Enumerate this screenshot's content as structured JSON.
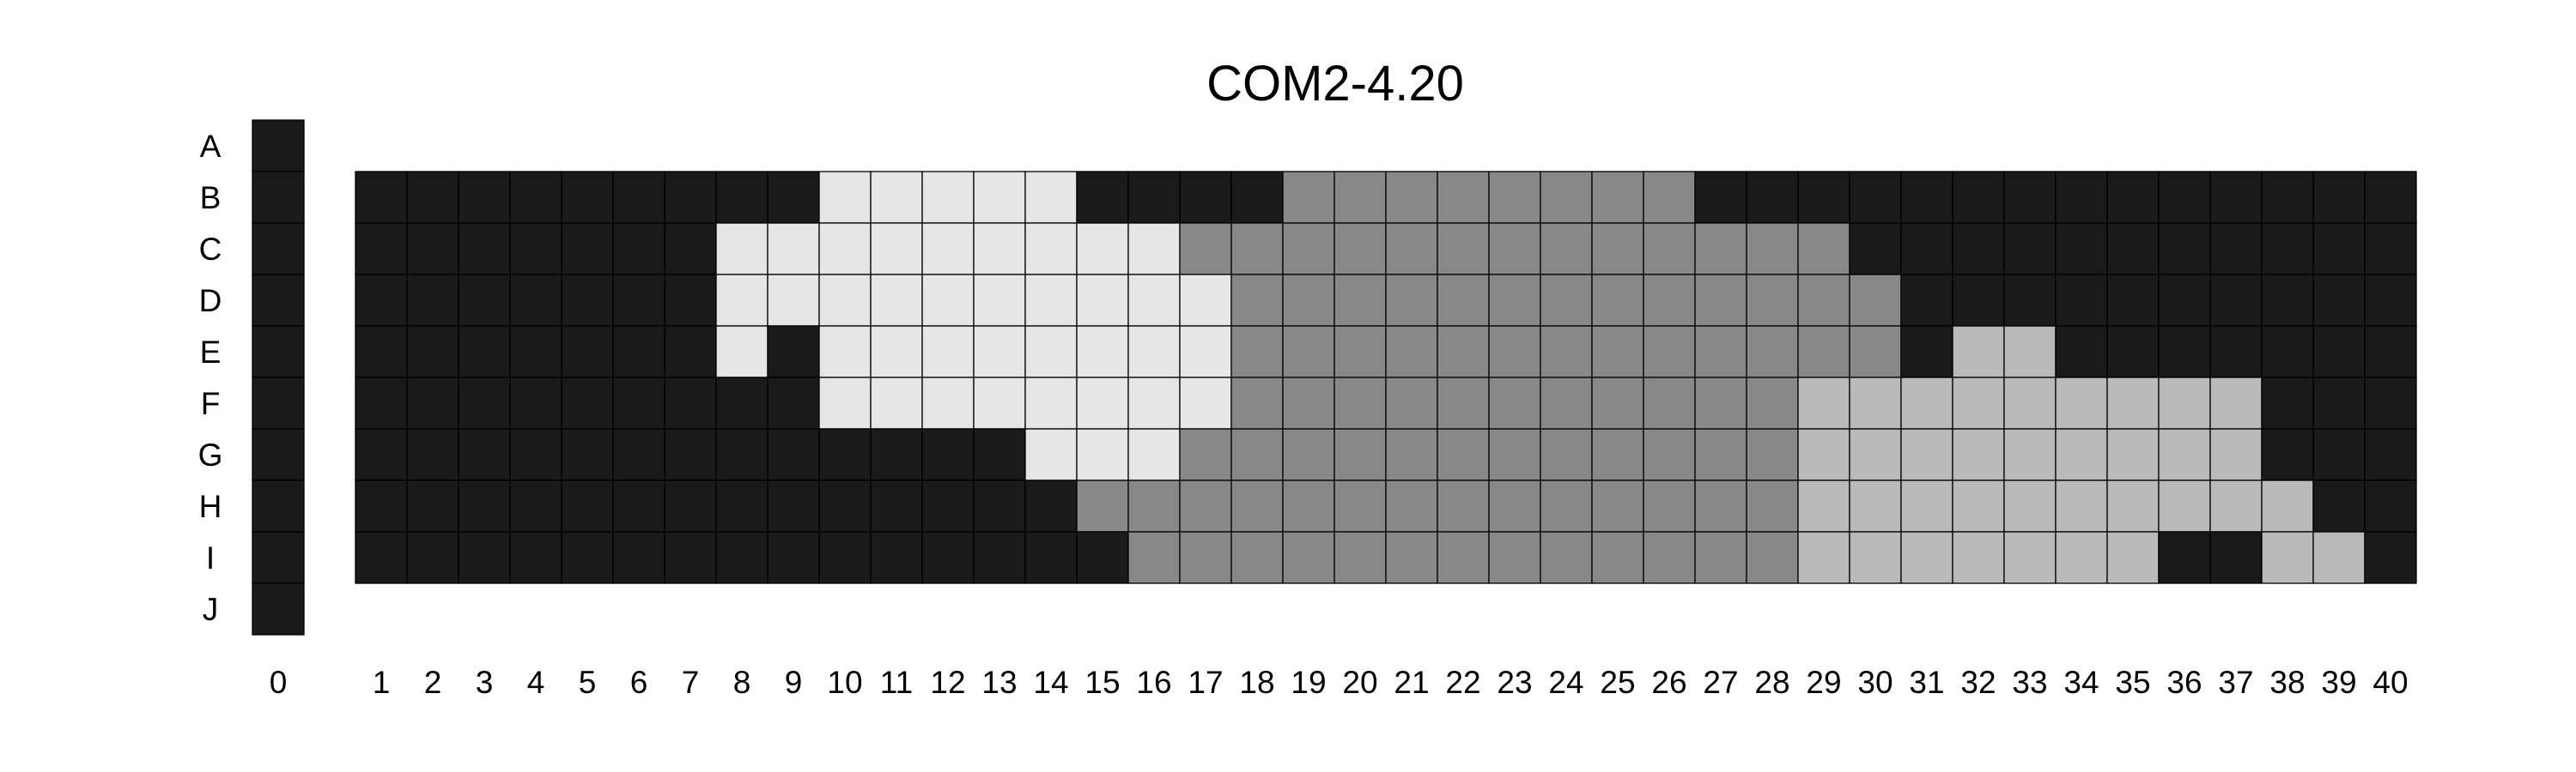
{
  "chart_data": {
    "type": "heatmap",
    "title": "COM2-4.20",
    "rows": [
      "A",
      "B",
      "C",
      "D",
      "E",
      "F",
      "G",
      "H",
      "I",
      "J"
    ],
    "columns": [
      "0",
      "1",
      "2",
      "3",
      "4",
      "5",
      "6",
      "7",
      "8",
      "9",
      "10",
      "11",
      "12",
      "13",
      "14",
      "15",
      "16",
      "17",
      "18",
      "19",
      "20",
      "21",
      "22",
      "23",
      "24",
      "25",
      "26",
      "27",
      "28",
      "29",
      "30",
      "31",
      "32",
      "33",
      "34",
      "35",
      "36",
      "37",
      "38",
      "39",
      "40"
    ],
    "levels": {
      "0": "#1a1a1a",
      "1": "#888888",
      "2": "#bababa",
      "3": "#e6e6e6"
    },
    "column_0_rows": [
      "A",
      "B",
      "C",
      "D",
      "E",
      "F",
      "G",
      "H",
      "I",
      "J"
    ],
    "column_0_level": 0,
    "grid_rows": [
      "B",
      "C",
      "D",
      "E",
      "F",
      "G",
      "H",
      "I"
    ],
    "grid_columns": [
      "1",
      "2",
      "3",
      "4",
      "5",
      "6",
      "7",
      "8",
      "9",
      "10",
      "11",
      "12",
      "13",
      "14",
      "15",
      "16",
      "17",
      "18",
      "19",
      "20",
      "21",
      "22",
      "23",
      "24",
      "25",
      "26",
      "27",
      "28",
      "29",
      "30",
      "31",
      "32",
      "33",
      "34",
      "35",
      "36",
      "37",
      "38",
      "39",
      "40"
    ],
    "values": [
      [
        0,
        0,
        0,
        0,
        0,
        0,
        0,
        0,
        0,
        3,
        3,
        3,
        3,
        3,
        0,
        0,
        0,
        0,
        1,
        1,
        1,
        1,
        1,
        1,
        1,
        1,
        0,
        0,
        0,
        0,
        0,
        0,
        0,
        0,
        0,
        0,
        0,
        0,
        0,
        0
      ],
      [
        0,
        0,
        0,
        0,
        0,
        0,
        0,
        3,
        3,
        3,
        3,
        3,
        3,
        3,
        3,
        3,
        1,
        1,
        1,
        1,
        1,
        1,
        1,
        1,
        1,
        1,
        1,
        1,
        1,
        0,
        0,
        0,
        0,
        0,
        0,
        0,
        0,
        0,
        0,
        0
      ],
      [
        0,
        0,
        0,
        0,
        0,
        0,
        0,
        3,
        3,
        3,
        3,
        3,
        3,
        3,
        3,
        3,
        3,
        1,
        1,
        1,
        1,
        1,
        1,
        1,
        1,
        1,
        1,
        1,
        1,
        1,
        0,
        0,
        0,
        0,
        0,
        0,
        0,
        0,
        0,
        0
      ],
      [
        0,
        0,
        0,
        0,
        0,
        0,
        0,
        3,
        0,
        3,
        3,
        3,
        3,
        3,
        3,
        3,
        3,
        1,
        1,
        1,
        1,
        1,
        1,
        1,
        1,
        1,
        1,
        1,
        1,
        1,
        0,
        2,
        2,
        0,
        0,
        0,
        0,
        0,
        0,
        0
      ],
      [
        0,
        0,
        0,
        0,
        0,
        0,
        0,
        0,
        0,
        3,
        3,
        3,
        3,
        3,
        3,
        3,
        3,
        1,
        1,
        1,
        1,
        1,
        1,
        1,
        1,
        1,
        1,
        1,
        2,
        2,
        2,
        2,
        2,
        2,
        2,
        2,
        2,
        0,
        0,
        0
      ],
      [
        0,
        0,
        0,
        0,
        0,
        0,
        0,
        0,
        0,
        0,
        0,
        0,
        0,
        3,
        3,
        3,
        1,
        1,
        1,
        1,
        1,
        1,
        1,
        1,
        1,
        1,
        1,
        1,
        2,
        2,
        2,
        2,
        2,
        2,
        2,
        2,
        2,
        0,
        0,
        0
      ],
      [
        0,
        0,
        0,
        0,
        0,
        0,
        0,
        0,
        0,
        0,
        0,
        0,
        0,
        0,
        1,
        1,
        1,
        1,
        1,
        1,
        1,
        1,
        1,
        1,
        1,
        1,
        1,
        1,
        2,
        2,
        2,
        2,
        2,
        2,
        2,
        2,
        2,
        2,
        0,
        0
      ],
      [
        0,
        0,
        0,
        0,
        0,
        0,
        0,
        0,
        0,
        0,
        0,
        0,
        0,
        0,
        0,
        1,
        1,
        1,
        1,
        1,
        1,
        1,
        1,
        1,
        1,
        1,
        1,
        1,
        2,
        2,
        2,
        2,
        2,
        2,
        2,
        0,
        0,
        2,
        2,
        0
      ]
    ]
  }
}
